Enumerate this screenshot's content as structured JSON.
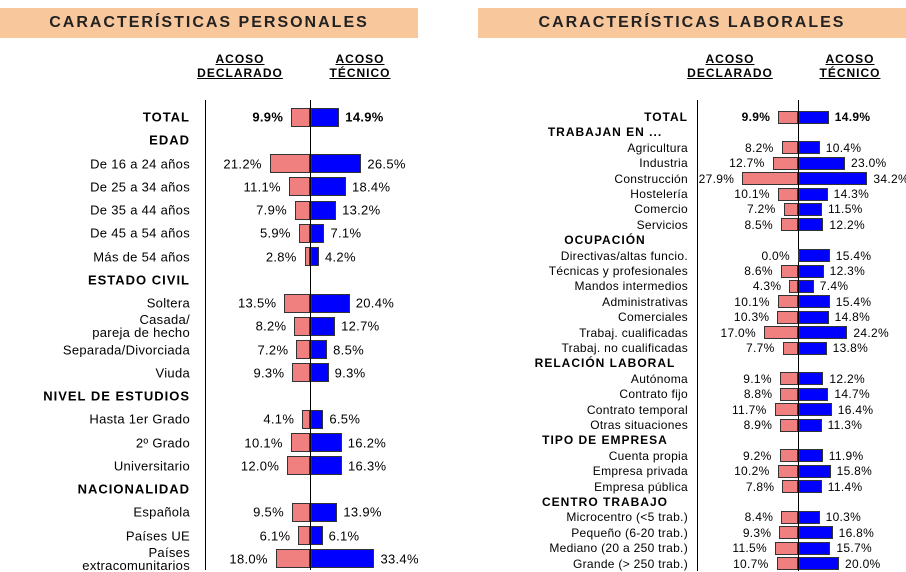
{
  "chart_data": [
    {
      "type": "bar",
      "title": "CARACTERÍSTICAS PERSONALES",
      "categories": [
        "TOTAL",
        "EDAD",
        "De 16 a 24 años",
        "De 25 a 34 años",
        "De 35 a 44 años",
        "De 45 a 54 años",
        "Más de 54 años",
        "ESTADO CIVIL",
        "Soltera",
        "Casada/\npareja de hecho",
        "Separada/Divorciada",
        "Viuda",
        "NIVEL DE ESTUDIOS",
        "Hasta 1er Grado",
        "2º Grado",
        "Universitario",
        "NACIONALIDAD",
        "Española",
        "Países UE",
        "Países\nextracomunitarios"
      ],
      "series": [
        {
          "name": "ACOSO DECLARADO",
          "color": "#f08080",
          "values": [
            9.9,
            null,
            21.2,
            11.1,
            7.9,
            5.9,
            2.8,
            null,
            13.5,
            8.2,
            7.2,
            9.3,
            null,
            4.1,
            10.1,
            12.0,
            null,
            9.5,
            6.1,
            18.0
          ],
          "value_labels": [
            "9.9%",
            null,
            "21.2%",
            "11.1%",
            "7.9%",
            "5.9%",
            "2.8%",
            null,
            "13.5%",
            "8.2%",
            "7.2%",
            "9.3%",
            null,
            "4.1%",
            "10.1%",
            "12.0%",
            null,
            "9.5%",
            "6.1%",
            "18.0%"
          ]
        },
        {
          "name": "ACOSO TÉCNICO",
          "color": "#0000ff",
          "values": [
            14.9,
            null,
            26.5,
            18.4,
            13.2,
            7.1,
            4.2,
            null,
            20.4,
            12.7,
            8.5,
            9.3,
            null,
            6.5,
            16.2,
            16.3,
            null,
            13.9,
            6.1,
            33.4
          ],
          "value_labels": [
            "14.9%",
            null,
            "26.5%",
            "18.4%",
            "13.2%",
            "7.1%",
            "4.2%",
            null,
            "20.4%",
            "12.7%",
            "8.5%",
            "9.3%",
            null,
            "6.5%",
            "16.2%",
            "16.3%",
            null,
            "13.9%",
            "6.1%",
            "33.4%"
          ]
        }
      ]
    },
    {
      "type": "bar",
      "title": "CARACTERÍSTICAS LABORALES",
      "categories": [
        "TOTAL",
        "TRABAJAN EN ...",
        "Agricultura",
        "Industria",
        "Construcción",
        "Hostelería",
        "Comercio",
        "Servicios",
        "OCUPACIÓN",
        "Directivas/altas funcio.",
        "Técnicas y profesionales",
        "Mandos intermedios",
        "Administrativas",
        "Comerciales",
        "Trabaj. cualificadas",
        "Trabaj. no cualificadas",
        "RELACIÓN LABORAL",
        "Autónoma",
        "Contrato fijo",
        "Contrato temporal",
        "Otras situaciones",
        "TIPO DE EMPRESA",
        "Cuenta propia",
        "Empresa privada",
        "Empresa pública",
        "CENTRO TRABAJO",
        "Microcentro (<5 trab.)",
        "Pequeño (6-20 trab.)",
        "Mediano (20 a 250 trab.)",
        "Grande (> 250 trab.)"
      ],
      "series": [
        {
          "name": "ACOSO DECLARADO",
          "color": "#f08080",
          "values": [
            9.9,
            null,
            8.2,
            12.7,
            27.9,
            10.1,
            7.2,
            8.5,
            null,
            0.0,
            8.6,
            4.3,
            10.1,
            10.3,
            17.0,
            7.7,
            null,
            9.1,
            8.8,
            11.7,
            8.9,
            null,
            9.2,
            10.2,
            7.8,
            null,
            8.4,
            9.3,
            11.5,
            10.7
          ],
          "value_labels": [
            "9.9%",
            null,
            "8.2%",
            "12.7%",
            "27.9%",
            "10.1%",
            "7.2%",
            "8.5%",
            null,
            "0.0%",
            "8.6%",
            "4.3%",
            "10.1%",
            "10.3%",
            "17.0%",
            "7.7%",
            null,
            "9.1%",
            "8.8%",
            "11.7%",
            "8.9%",
            null,
            "9.2%",
            "10.2%",
            "7.8%",
            null,
            "8.4%",
            "9.3%",
            "11.5%",
            "10.7%"
          ]
        },
        {
          "name": "ACOSO TÉCNICO",
          "color": "#0000ff",
          "values": [
            14.9,
            null,
            10.4,
            23.0,
            34.2,
            14.3,
            11.5,
            12.2,
            null,
            15.4,
            12.3,
            7.4,
            15.4,
            14.8,
            24.2,
            13.8,
            null,
            12.2,
            14.7,
            16.4,
            11.3,
            null,
            11.9,
            15.8,
            11.4,
            null,
            10.3,
            16.8,
            15.7,
            20.0
          ],
          "value_labels": [
            "14.9%",
            null,
            "10.4%",
            "23.0%",
            "34.2%",
            "14.3%",
            "11.5%",
            "12.2%",
            null,
            "15.4%",
            "12.3%",
            "7.4%",
            "15.4%",
            "14.8%",
            "24.2%",
            "13.8%",
            null,
            "12.2%",
            "14.7%",
            "16.4%",
            "11.3%",
            null,
            "11.9%",
            "15.8%",
            "11.4%",
            null,
            "10.3%",
            "16.8%",
            "15.7%",
            "20.0%"
          ]
        }
      ]
    }
  ]
}
